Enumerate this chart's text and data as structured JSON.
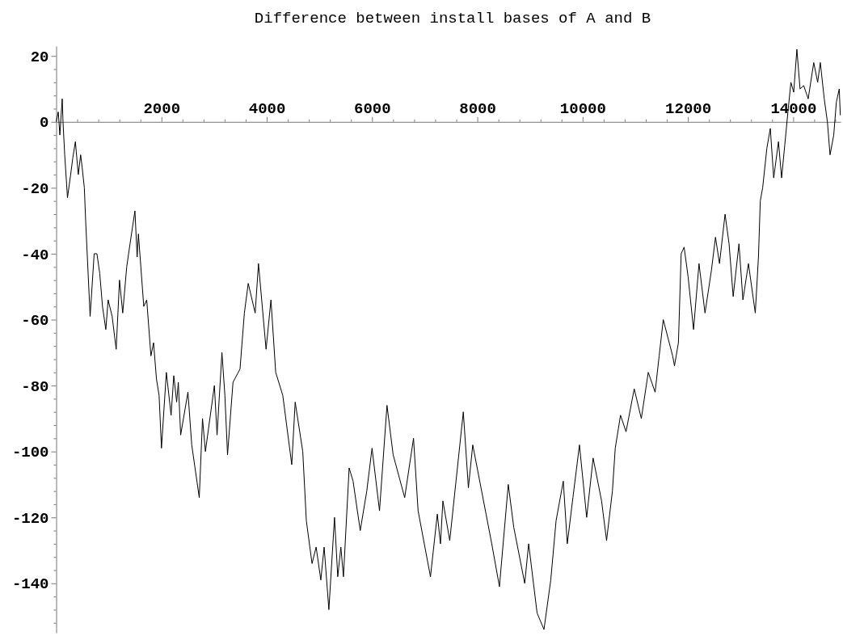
{
  "chart_data": {
    "type": "line",
    "title": "Difference between install bases of A and B",
    "xlim": [
      0,
      14900
    ],
    "ylim": [
      -155,
      23
    ],
    "xticks": [
      {
        "value": 400,
        "label": null
      },
      {
        "value": 800,
        "label": null
      },
      {
        "value": 1200,
        "label": null
      },
      {
        "value": 1600,
        "label": null
      },
      2000,
      {
        "value": 2400,
        "label": null
      },
      {
        "value": 2800,
        "label": null
      },
      {
        "value": 3200,
        "label": null
      },
      {
        "value": 3600,
        "label": null
      },
      4000,
      {
        "value": 4400,
        "label": null
      },
      {
        "value": 4800,
        "label": null
      },
      {
        "value": 5200,
        "label": null
      },
      {
        "value": 5600,
        "label": null
      },
      6000,
      {
        "value": 6400,
        "label": null
      },
      {
        "value": 6800,
        "label": null
      },
      {
        "value": 7200,
        "label": null
      },
      {
        "value": 7600,
        "label": null
      },
      8000,
      {
        "value": 8400,
        "label": null
      },
      {
        "value": 8800,
        "label": null
      },
      {
        "value": 9200,
        "label": null
      },
      {
        "value": 9600,
        "label": null
      },
      10000,
      {
        "value": 10400,
        "label": null
      },
      {
        "value": 10800,
        "label": null
      },
      {
        "value": 11200,
        "label": null
      },
      {
        "value": 11600,
        "label": null
      },
      12000,
      {
        "value": 12400,
        "label": null
      },
      {
        "value": 12800,
        "label": null
      },
      {
        "value": 13200,
        "label": null
      },
      {
        "value": 13600,
        "label": null
      },
      14000,
      {
        "value": 14400,
        "label": null
      },
      {
        "value": 14800,
        "label": null
      }
    ],
    "yticks": [
      20,
      {
        "value": 16,
        "label": null
      },
      {
        "value": 12,
        "label": null
      },
      {
        "value": 8,
        "label": null
      },
      {
        "value": 4,
        "label": null
      },
      0,
      {
        "value": -4,
        "label": null
      },
      {
        "value": -8,
        "label": null
      },
      {
        "value": -12,
        "label": null
      },
      {
        "value": -16,
        "label": null
      },
      -20,
      {
        "value": -24,
        "label": null
      },
      {
        "value": -28,
        "label": null
      },
      {
        "value": -32,
        "label": null
      },
      {
        "value": -36,
        "label": null
      },
      -40,
      {
        "value": -44,
        "label": null
      },
      {
        "value": -48,
        "label": null
      },
      {
        "value": -52,
        "label": null
      },
      {
        "value": -56,
        "label": null
      },
      -60,
      {
        "value": -64,
        "label": null
      },
      {
        "value": -68,
        "label": null
      },
      {
        "value": -72,
        "label": null
      },
      {
        "value": -76,
        "label": null
      },
      -80,
      {
        "value": -84,
        "label": null
      },
      {
        "value": -88,
        "label": null
      },
      {
        "value": -92,
        "label": null
      },
      {
        "value": -96,
        "label": null
      },
      -100,
      {
        "value": -104,
        "label": null
      },
      {
        "value": -108,
        "label": null
      },
      {
        "value": -112,
        "label": null
      },
      {
        "value": -116,
        "label": null
      },
      -120,
      {
        "value": -124,
        "label": null
      },
      {
        "value": -128,
        "label": null
      },
      {
        "value": -132,
        "label": null
      },
      {
        "value": -136,
        "label": null
      },
      -140,
      {
        "value": -144,
        "label": null
      },
      {
        "value": -148,
        "label": null
      },
      {
        "value": -152,
        "label": null
      }
    ],
    "line_style": "solid",
    "series": [
      {
        "color": "#000000",
        "x": [
          0,
          40,
          70,
          115,
          130,
          162,
          215,
          275,
          315,
          365,
          420,
          465,
          495,
          535,
          560,
          645,
          722,
          774,
          828,
          880,
          943,
          987,
          1063,
          1140,
          1203,
          1264,
          1340,
          1403,
          1496,
          1538,
          1562,
          1664,
          1720,
          1800,
          1850,
          1905,
          1955,
          2000,
          2093,
          2183,
          2234,
          2289,
          2320,
          2365,
          2503,
          2575,
          2718,
          2780,
          2835,
          3005,
          3056,
          3149,
          3205,
          3255,
          3359,
          3492,
          3575,
          3648,
          3780,
          3843,
          3987,
          4080,
          4170,
          4305,
          4475,
          4540,
          4684,
          4752,
          4860,
          4938,
          5027,
          5090,
          5180,
          5287,
          5349,
          5408,
          5457,
          5565,
          5640,
          5776,
          5900,
          6000,
          6142,
          6284,
          6401,
          6620,
          6788,
          6875,
          7110,
          7240,
          7300,
          7346,
          7476,
          7734,
          7830,
          7913,
          8166,
          8274,
          8420,
          8588,
          8692,
          8900,
          8975,
          9135,
          9266,
          9395,
          9496,
          9633,
          9709,
          9816,
          9940,
          10077,
          10200,
          10360,
          10455,
          10566,
          10620,
          10720,
          10825,
          10980,
          11115,
          11247,
          11377,
          11454,
          11532,
          11710,
          11745,
          11820,
          11872,
          11928,
          12004,
          12107,
          12211,
          12325,
          12447,
          12524,
          12600,
          12706,
          12782,
          12860,
          12970,
          13045,
          13150,
          13280,
          13340,
          13375,
          13420,
          13500,
          13565,
          13630,
          13720,
          13780,
          13840,
          13900,
          13957,
          14010,
          14070,
          14130,
          14200,
          14285,
          14390,
          14465,
          14515,
          14590,
          14650,
          14700,
          14770,
          14820,
          14875,
          14895
        ],
        "values": [
          0,
          3,
          -4,
          7,
          0,
          -10,
          -23,
          -16,
          -11,
          -6,
          -16,
          -10,
          -14,
          -20,
          -30,
          -59,
          -40,
          -40,
          -46,
          -56,
          -63,
          -54,
          -59,
          -69,
          -48,
          -58,
          -44,
          -37,
          -27,
          -41,
          -34,
          -56,
          -54,
          -71,
          -67,
          -78,
          -83,
          -99,
          -76,
          -89,
          -77,
          -85,
          -79,
          -95,
          -82,
          -98,
          -114,
          -90,
          -100,
          -80,
          -95,
          -70,
          -83,
          -101,
          -79,
          -75,
          -58,
          -49,
          -58,
          -43,
          -69,
          -54,
          -76,
          -83,
          -104,
          -85,
          -100,
          -121,
          -134,
          -129,
          -139,
          -129,
          -148,
          -120,
          -138,
          -129,
          -138,
          -105,
          -109,
          -124,
          -112,
          -99,
          -118,
          -86,
          -101,
          -114,
          -96,
          -118,
          -138,
          -119,
          -128,
          -115,
          -127,
          -88,
          -111,
          -98,
          -119,
          -128,
          -141,
          -110,
          -123,
          -140,
          -128,
          -149,
          -154,
          -139,
          -121,
          -109,
          -128,
          -114,
          -98,
          -120,
          -102,
          -115,
          -127,
          -112,
          -99,
          -89,
          -94,
          -81,
          -90,
          -76,
          -82,
          -71,
          -60,
          -71,
          -74,
          -67,
          -40,
          -38,
          -47,
          -63,
          -43,
          -58,
          -45,
          -35,
          -43,
          -28,
          -37,
          -53,
          -37,
          -54,
          -43,
          -58,
          -41,
          -24,
          -20,
          -8,
          -2,
          -17,
          -6,
          -17,
          -7,
          3,
          12,
          9,
          22,
          10,
          11,
          7,
          18,
          12,
          18,
          7,
          0,
          -10,
          -4,
          6,
          10,
          2
        ]
      }
    ]
  }
}
